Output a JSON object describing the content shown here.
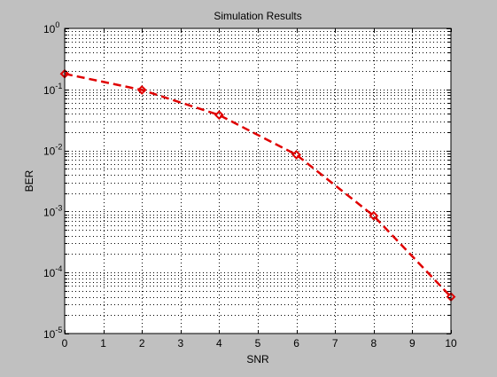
{
  "chart_data": {
    "type": "line",
    "title": "Simulation Results",
    "xlabel": "SNR",
    "ylabel": "BER",
    "xlim": [
      0,
      10
    ],
    "ylim": [
      1e-05,
      1
    ],
    "yscale": "log",
    "grid": true,
    "x_ticks": [
      "0",
      "1",
      "2",
      "3",
      "4",
      "5",
      "6",
      "7",
      "8",
      "9",
      "10"
    ],
    "y_ticks": [
      {
        "base": "10",
        "exp": "-5"
      },
      {
        "base": "10",
        "exp": "-4"
      },
      {
        "base": "10",
        "exp": "-3"
      },
      {
        "base": "10",
        "exp": "-2"
      },
      {
        "base": "10",
        "exp": "-1"
      },
      {
        "base": "10",
        "exp": "0"
      }
    ],
    "series": [
      {
        "color": "#e00000",
        "line_style": "dashed",
        "marker": "diamond",
        "x": [
          0,
          2,
          4,
          6,
          8,
          10
        ],
        "y": [
          0.18,
          0.098,
          0.038,
          0.0085,
          0.00085,
          4e-05
        ]
      }
    ]
  },
  "colors": {
    "figure_background": "#c0c0c0",
    "axes_background": "#ffffff",
    "series": "#e00000"
  }
}
